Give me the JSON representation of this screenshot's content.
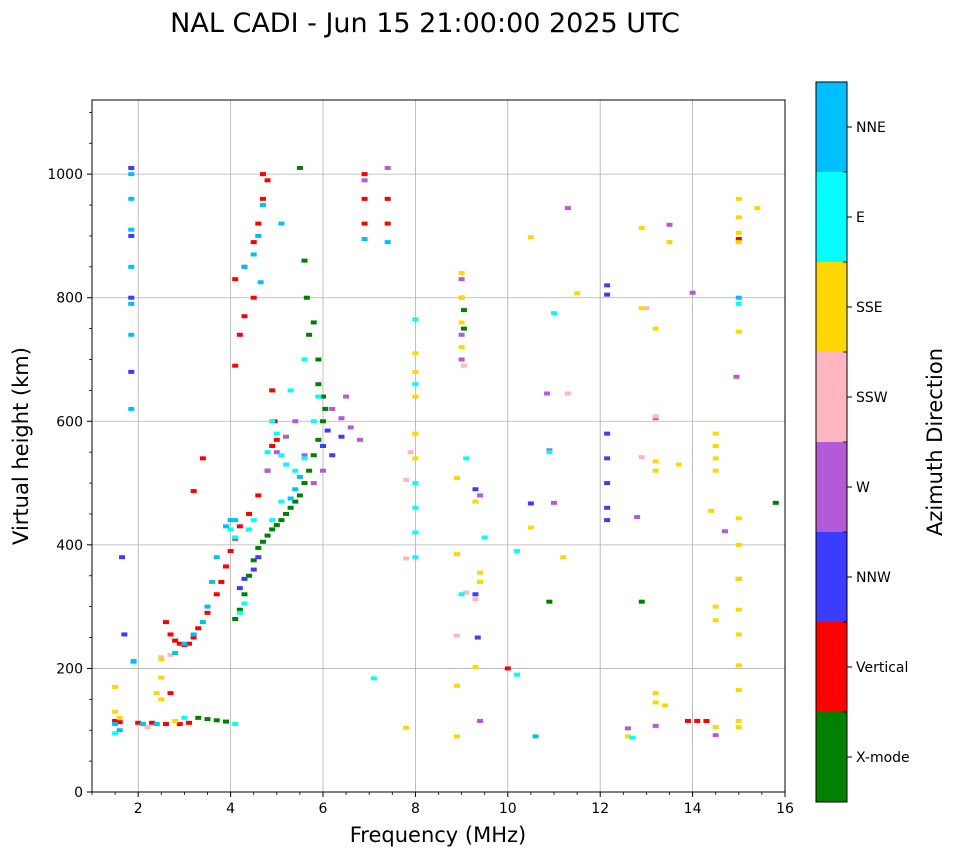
{
  "chart_data": {
    "type": "scatter",
    "title": "NAL CADI - Jun 15 21:00:00 2025 UTC",
    "xlabel": "Frequency (MHz)",
    "ylabel": "Virtual height (km)",
    "xlim": [
      1,
      16
    ],
    "ylim": [
      0,
      1120
    ],
    "xticks": [
      2,
      4,
      6,
      8,
      10,
      12,
      14,
      16
    ],
    "yticks": [
      0,
      200,
      400,
      600,
      800,
      1000
    ],
    "grid": true,
    "colorbar": {
      "label": "Azimuth Direction",
      "categories": [
        {
          "name": "X-mode",
          "color": "#008000"
        },
        {
          "name": "Vertical",
          "color": "#ff0000"
        },
        {
          "name": "NNW",
          "color": "#3c3cff"
        },
        {
          "name": "W",
          "color": "#b35ad8"
        },
        {
          "name": "SSW",
          "color": "#ffb6c1"
        },
        {
          "name": "SSE",
          "color": "#ffd700"
        },
        {
          "name": "E",
          "color": "#00ffff"
        },
        {
          "name": "NNE",
          "color": "#00bfff"
        }
      ]
    },
    "series": [
      {
        "name": "X-mode",
        "points": [
          [
            3.3,
            120
          ],
          [
            3.5,
            118
          ],
          [
            3.7,
            116
          ],
          [
            3.9,
            114
          ],
          [
            4.1,
            280
          ],
          [
            4.2,
            295
          ],
          [
            4.3,
            320
          ],
          [
            4.4,
            350
          ],
          [
            4.5,
            375
          ],
          [
            4.6,
            395
          ],
          [
            4.7,
            405
          ],
          [
            4.8,
            415
          ],
          [
            4.9,
            425
          ],
          [
            5.0,
            432
          ],
          [
            5.1,
            440
          ],
          [
            5.2,
            450
          ],
          [
            5.3,
            460
          ],
          [
            5.4,
            470
          ],
          [
            5.5,
            480
          ],
          [
            5.6,
            500
          ],
          [
            5.7,
            520
          ],
          [
            5.8,
            545
          ],
          [
            5.9,
            570
          ],
          [
            6.0,
            600
          ],
          [
            6.05,
            620
          ],
          [
            5.5,
            1010
          ],
          [
            5.6,
            860
          ],
          [
            5.65,
            800
          ],
          [
            5.8,
            760
          ],
          [
            5.9,
            700
          ],
          [
            5.7,
            740
          ],
          [
            5.9,
            660
          ],
          [
            6.0,
            640
          ],
          [
            9.05,
            780
          ],
          [
            9.05,
            750
          ],
          [
            10.9,
            308
          ],
          [
            12.9,
            308
          ],
          [
            15.8,
            468
          ]
        ]
      },
      {
        "name": "Vertical",
        "points": [
          [
            1.5,
            115
          ],
          [
            1.6,
            113
          ],
          [
            2.0,
            112
          ],
          [
            2.3,
            112
          ],
          [
            2.6,
            110
          ],
          [
            2.9,
            110
          ],
          [
            3.1,
            112
          ],
          [
            2.7,
            160
          ],
          [
            2.6,
            275
          ],
          [
            2.7,
            255
          ],
          [
            2.8,
            245
          ],
          [
            2.9,
            240
          ],
          [
            3.0,
            238
          ],
          [
            3.1,
            240
          ],
          [
            3.2,
            250
          ],
          [
            3.3,
            265
          ],
          [
            3.5,
            290
          ],
          [
            3.7,
            320
          ],
          [
            3.8,
            340
          ],
          [
            3.9,
            365
          ],
          [
            4.0,
            390
          ],
          [
            4.1,
            410
          ],
          [
            4.2,
            430
          ],
          [
            4.4,
            450
          ],
          [
            4.6,
            480
          ],
          [
            4.8,
            520
          ],
          [
            4.9,
            560
          ],
          [
            3.4,
            540
          ],
          [
            3.2,
            487
          ],
          [
            4.1,
            690
          ],
          [
            4.2,
            740
          ],
          [
            4.3,
            770
          ],
          [
            4.5,
            800
          ],
          [
            4.1,
            830
          ],
          [
            4.3,
            850
          ],
          [
            4.5,
            890
          ],
          [
            4.6,
            920
          ],
          [
            4.7,
            960
          ],
          [
            4.8,
            990
          ],
          [
            4.7,
            1000
          ],
          [
            4.9,
            650
          ],
          [
            4.95,
            600
          ],
          [
            5.0,
            570
          ],
          [
            6.9,
            1000
          ],
          [
            6.9,
            960
          ],
          [
            6.9,
            920
          ],
          [
            7.4,
            960
          ],
          [
            7.4,
            920
          ],
          [
            10.0,
            200
          ],
          [
            13.9,
            115
          ],
          [
            14.1,
            115
          ],
          [
            14.3,
            115
          ],
          [
            15.0,
            895
          ]
        ]
      },
      {
        "name": "NNW",
        "points": [
          [
            1.65,
            380
          ],
          [
            1.7,
            255
          ],
          [
            1.85,
            1010
          ],
          [
            1.85,
            900
          ],
          [
            1.85,
            800
          ],
          [
            1.85,
            680
          ],
          [
            4.2,
            330
          ],
          [
            4.3,
            345
          ],
          [
            4.5,
            360
          ],
          [
            4.6,
            380
          ],
          [
            6.0,
            560
          ],
          [
            6.1,
            585
          ],
          [
            6.2,
            545
          ],
          [
            6.4,
            575
          ],
          [
            9.3,
            490
          ],
          [
            9.3,
            320
          ],
          [
            9.35,
            250
          ],
          [
            10.5,
            467
          ],
          [
            12.15,
            580
          ],
          [
            12.15,
            540
          ],
          [
            12.15,
            500
          ],
          [
            12.15,
            460
          ],
          [
            12.15,
            440
          ],
          [
            12.15,
            820
          ],
          [
            12.15,
            805
          ]
        ]
      },
      {
        "name": "W",
        "points": [
          [
            4.8,
            520
          ],
          [
            5.0,
            550
          ],
          [
            5.2,
            575
          ],
          [
            5.4,
            600
          ],
          [
            5.6,
            545
          ],
          [
            5.8,
            500
          ],
          [
            6.0,
            520
          ],
          [
            6.2,
            620
          ],
          [
            6.4,
            605
          ],
          [
            6.6,
            590
          ],
          [
            6.8,
            570
          ],
          [
            6.5,
            640
          ],
          [
            6.9,
            990
          ],
          [
            7.4,
            1010
          ],
          [
            9.0,
            830
          ],
          [
            9.0,
            800
          ],
          [
            9.0,
            740
          ],
          [
            9.0,
            700
          ],
          [
            9.4,
            480
          ],
          [
            9.4,
            115
          ],
          [
            10.85,
            645
          ],
          [
            10.9,
            553
          ],
          [
            11.0,
            468
          ],
          [
            11.3,
            945
          ],
          [
            12.6,
            103
          ],
          [
            12.8,
            445
          ],
          [
            13.2,
            605
          ],
          [
            13.2,
            107
          ],
          [
            13.5,
            918
          ],
          [
            13.5,
            890
          ],
          [
            14.0,
            808
          ],
          [
            14.5,
            92
          ],
          [
            14.7,
            422
          ],
          [
            14.95,
            672
          ],
          [
            15.0,
            345
          ]
        ]
      },
      {
        "name": "SSW",
        "points": [
          [
            2.5,
            218
          ],
          [
            2.7,
            222
          ],
          [
            2.2,
            105
          ],
          [
            7.8,
            378
          ],
          [
            7.8,
            505
          ],
          [
            7.9,
            550
          ],
          [
            8.9,
            253
          ],
          [
            9.1,
            323
          ],
          [
            9.3,
            312
          ],
          [
            9.05,
            690
          ],
          [
            11.3,
            645
          ],
          [
            12.9,
            542
          ],
          [
            13.2,
            608
          ],
          [
            13.0,
            783
          ]
        ]
      },
      {
        "name": "SSE",
        "points": [
          [
            1.5,
            170
          ],
          [
            1.5,
            130
          ],
          [
            1.6,
            120
          ],
          [
            2.4,
            160
          ],
          [
            2.5,
            185
          ],
          [
            2.8,
            115
          ],
          [
            2.5,
            150
          ],
          [
            2.5,
            215
          ],
          [
            7.8,
            104
          ],
          [
            8.0,
            540
          ],
          [
            8.0,
            580
          ],
          [
            8.0,
            640
          ],
          [
            8.0,
            680
          ],
          [
            8.0,
            710
          ],
          [
            8.9,
            90
          ],
          [
            8.9,
            172
          ],
          [
            8.9,
            385
          ],
          [
            8.9,
            508
          ],
          [
            9.0,
            840
          ],
          [
            9.0,
            800
          ],
          [
            9.0,
            760
          ],
          [
            9.0,
            720
          ],
          [
            9.3,
            202
          ],
          [
            9.4,
            340
          ],
          [
            9.4,
            355
          ],
          [
            9.3,
            470
          ],
          [
            10.5,
            428
          ],
          [
            10.5,
            898
          ],
          [
            10.6,
            90
          ],
          [
            11.2,
            380
          ],
          [
            11.5,
            807
          ],
          [
            12.6,
            90
          ],
          [
            12.9,
            913
          ],
          [
            12.9,
            783
          ],
          [
            13.2,
            160
          ],
          [
            13.2,
            145
          ],
          [
            13.2,
            750
          ],
          [
            13.2,
            535
          ],
          [
            13.2,
            520
          ],
          [
            13.4,
            140
          ],
          [
            13.5,
            890
          ],
          [
            13.7,
            530
          ],
          [
            14.4,
            455
          ],
          [
            14.5,
            300
          ],
          [
            14.5,
            278
          ],
          [
            14.5,
            580
          ],
          [
            14.5,
            560
          ],
          [
            14.5,
            540
          ],
          [
            14.5,
            520
          ],
          [
            14.5,
            105
          ],
          [
            15.0,
            115
          ],
          [
            15.0,
            105
          ],
          [
            15.0,
            165
          ],
          [
            15.0,
            205
          ],
          [
            15.0,
            255
          ],
          [
            15.0,
            295
          ],
          [
            15.0,
            345
          ],
          [
            15.0,
            400
          ],
          [
            15.0,
            443
          ],
          [
            15.0,
            745
          ],
          [
            15.0,
            890
          ],
          [
            15.0,
            905
          ],
          [
            15.0,
            930
          ],
          [
            15.0,
            960
          ],
          [
            15.4,
            945
          ]
        ]
      },
      {
        "name": "E",
        "points": [
          [
            1.5,
            95
          ],
          [
            1.9,
            210
          ],
          [
            3.0,
            120
          ],
          [
            4.1,
            110
          ],
          [
            4.0,
            425
          ],
          [
            4.1,
            412
          ],
          [
            4.2,
            290
          ],
          [
            4.3,
            305
          ],
          [
            4.4,
            425
          ],
          [
            4.5,
            440
          ],
          [
            4.8,
            550
          ],
          [
            4.9,
            600
          ],
          [
            5.0,
            580
          ],
          [
            5.1,
            545
          ],
          [
            5.2,
            530
          ],
          [
            5.4,
            520
          ],
          [
            5.6,
            540
          ],
          [
            5.8,
            600
          ],
          [
            5.9,
            640
          ],
          [
            5.6,
            700
          ],
          [
            5.3,
            650
          ],
          [
            5.1,
            470
          ],
          [
            4.9,
            440
          ],
          [
            7.1,
            184
          ],
          [
            8.0,
            380
          ],
          [
            8.0,
            420
          ],
          [
            8.0,
            460
          ],
          [
            8.0,
            500
          ],
          [
            8.0,
            660
          ],
          [
            8.0,
            765
          ],
          [
            9.0,
            320
          ],
          [
            9.1,
            540
          ],
          [
            9.5,
            412
          ],
          [
            10.2,
            190
          ],
          [
            10.2,
            390
          ],
          [
            10.9,
            550
          ],
          [
            11.0,
            775
          ],
          [
            12.7,
            88
          ],
          [
            15.0,
            790
          ]
        ]
      },
      {
        "name": "NNE",
        "points": [
          [
            1.5,
            110
          ],
          [
            1.6,
            100
          ],
          [
            1.85,
            1000
          ],
          [
            1.85,
            960
          ],
          [
            1.85,
            910
          ],
          [
            1.85,
            850
          ],
          [
            1.85,
            790
          ],
          [
            1.85,
            740
          ],
          [
            1.85,
            620
          ],
          [
            1.9,
            212
          ],
          [
            2.1,
            110
          ],
          [
            2.4,
            110
          ],
          [
            2.8,
            225
          ],
          [
            3.0,
            240
          ],
          [
            3.2,
            255
          ],
          [
            3.4,
            275
          ],
          [
            3.5,
            300
          ],
          [
            3.6,
            340
          ],
          [
            3.7,
            380
          ],
          [
            3.9,
            430
          ],
          [
            4.0,
            440
          ],
          [
            4.1,
            440
          ],
          [
            4.3,
            850
          ],
          [
            4.5,
            870
          ],
          [
            4.6,
            900
          ],
          [
            4.65,
            825
          ],
          [
            4.7,
            950
          ],
          [
            5.1,
            920
          ],
          [
            5.3,
            475
          ],
          [
            5.4,
            490
          ],
          [
            5.5,
            510
          ],
          [
            6.9,
            895
          ],
          [
            7.4,
            890
          ],
          [
            10.6,
            90
          ],
          [
            15.0,
            800
          ]
        ]
      }
    ]
  }
}
